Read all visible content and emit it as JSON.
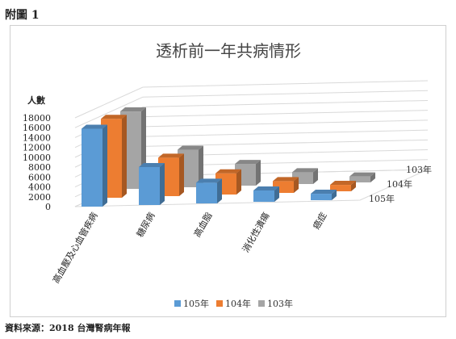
{
  "figure_label": "附圖 1",
  "source_note": "資料來源：2018 台灣腎病年報",
  "colors": {
    "105年": "#5B9BD5",
    "104年": "#ED7D31",
    "103年": "#A5A5A5"
  },
  "chart_data": {
    "type": "bar",
    "subtype": "3d-clustered-bar",
    "title": "透析前一年共病情形",
    "ylabel": "人數",
    "ylim": [
      0,
      18000
    ],
    "yticks": [
      0,
      2000,
      4000,
      6000,
      8000,
      10000,
      12000,
      14000,
      16000,
      18000
    ],
    "grid": true,
    "legend_position": "bottom",
    "categories": [
      "高血壓及心血管疾病",
      "糖尿病",
      "高血脂",
      "消化性潰瘍",
      "癌症"
    ],
    "series": [
      {
        "name": "105年",
        "values": [
          15800,
          7700,
          4200,
          2300,
          1300
        ]
      },
      {
        "name": "104年",
        "values": [
          16000,
          7800,
          4300,
          2400,
          1300
        ]
      },
      {
        "name": "103年",
        "values": [
          15700,
          7600,
          4400,
          2400,
          1200
        ]
      }
    ]
  }
}
